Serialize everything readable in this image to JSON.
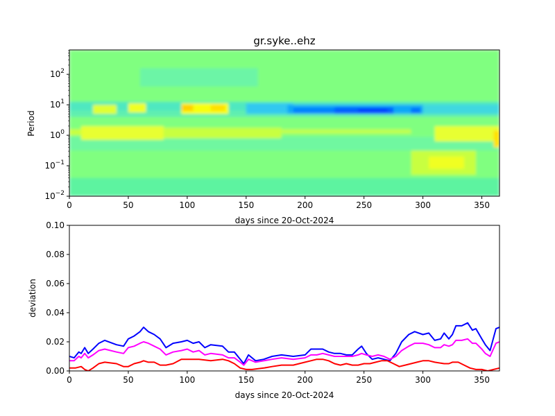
{
  "chart_data": [
    {
      "type": "heatmap",
      "title": "gr.syke..ehz",
      "xlabel": "days since 20-Oct-2024",
      "ylabel": "Period",
      "xlim": [
        0,
        365
      ],
      "ylim_log10": [
        -2,
        2.8
      ],
      "x_ticks": [
        0,
        50,
        100,
        150,
        200,
        250,
        300,
        350
      ],
      "y_ticks": [
        {
          "base": "10",
          "exp": "−2",
          "log10": -2
        },
        {
          "base": "10",
          "exp": "−1",
          "log10": -1
        },
        {
          "base": "10",
          "exp": "0",
          "log10": 0
        },
        {
          "base": "10",
          "exp": "1",
          "log10": 1
        },
        {
          "base": "10",
          "exp": "2",
          "log10": 2
        }
      ],
      "colormap": "jet",
      "colors": {
        "background": "#80ff80"
      },
      "bands": [
        {
          "x0": 0,
          "x1": 365,
          "y0": -2,
          "y1": 2.8,
          "color": "#80ff80"
        },
        {
          "x0": 0,
          "x1": 365,
          "y0": -2,
          "y1": -1.4,
          "color": "#5df3a0"
        },
        {
          "x0": 60,
          "x1": 160,
          "y0": 1.6,
          "y1": 2.2,
          "color": "#6cf5a6"
        },
        {
          "x0": 0,
          "x1": 365,
          "y0": -0.5,
          "y1": -0.05,
          "color": "#70f7a0"
        },
        {
          "x0": 0,
          "x1": 365,
          "y0": 0.8,
          "y1": 1.1,
          "color": "#50e8c0"
        },
        {
          "x0": 0,
          "x1": 365,
          "y0": 0.6,
          "y1": 0.8,
          "color": "#60efb0"
        },
        {
          "x0": 10,
          "x1": 80,
          "y0": -0.15,
          "y1": 0.3,
          "color": "#e8ff30"
        },
        {
          "x0": 80,
          "x1": 180,
          "y0": -0.1,
          "y1": 0.25,
          "color": "#c8ff40"
        },
        {
          "x0": 0,
          "x1": 10,
          "y0": 0.0,
          "y1": 0.2,
          "color": "#c8ff40"
        },
        {
          "x0": 180,
          "x1": 290,
          "y0": 0.05,
          "y1": 0.2,
          "color": "#c0ff50"
        },
        {
          "x0": 310,
          "x1": 365,
          "y0": -0.2,
          "y1": 0.3,
          "color": "#e8ff30"
        },
        {
          "x0": 290,
          "x1": 345,
          "y0": -1.3,
          "y1": -0.5,
          "color": "#c8ff40"
        },
        {
          "x0": 305,
          "x1": 335,
          "y0": -1.1,
          "y1": -0.7,
          "color": "#f0ff20"
        },
        {
          "x0": 20,
          "x1": 40,
          "y0": 0.7,
          "y1": 1.0,
          "color": "#e0ff30"
        },
        {
          "x0": 50,
          "x1": 65,
          "y0": 0.75,
          "y1": 1.05,
          "color": "#f0ff20"
        },
        {
          "x0": 95,
          "x1": 135,
          "y0": 0.7,
          "y1": 1.05,
          "color": "#f8ff10"
        },
        {
          "x0": 95,
          "x1": 105,
          "y0": 0.8,
          "y1": 1.0,
          "color": "#ffd000"
        },
        {
          "x0": 120,
          "x1": 132,
          "y0": 0.8,
          "y1": 1.0,
          "color": "#ffe000"
        },
        {
          "x0": 150,
          "x1": 190,
          "y0": 0.7,
          "y1": 1.05,
          "color": "#30c8f0"
        },
        {
          "x0": 185,
          "x1": 300,
          "y0": 0.7,
          "y1": 1.0,
          "color": "#10a8f8"
        },
        {
          "x0": 190,
          "x1": 225,
          "y0": 0.72,
          "y1": 0.9,
          "color": "#0080ff"
        },
        {
          "x0": 225,
          "x1": 275,
          "y0": 0.7,
          "y1": 0.92,
          "color": "#0060ff"
        },
        {
          "x0": 245,
          "x1": 270,
          "y0": 0.75,
          "y1": 0.88,
          "color": "#0040ff"
        },
        {
          "x0": 290,
          "x1": 298,
          "y0": 0.72,
          "y1": 0.9,
          "color": "#0070ff"
        },
        {
          "x0": 300,
          "x1": 365,
          "y0": 0.7,
          "y1": 1.0,
          "color": "#40d8e0"
        },
        {
          "x0": 360,
          "x1": 365,
          "y0": -0.4,
          "y1": 0.15,
          "color": "#ffe000"
        }
      ]
    },
    {
      "type": "line",
      "title": "",
      "xlabel": "days since 20-Oct-2024",
      "ylabel": "deviation",
      "xlim": [
        0,
        365
      ],
      "ylim": [
        0,
        0.1
      ],
      "x_ticks": [
        0,
        50,
        100,
        150,
        200,
        250,
        300,
        350
      ],
      "y_ticks": [
        0.0,
        0.02,
        0.04,
        0.06,
        0.08,
        0.1
      ],
      "y_tick_labels": [
        "0.00",
        "0.02",
        "0.04",
        "0.06",
        "0.08",
        "0.10"
      ],
      "grid": false,
      "series": [
        {
          "name": "blue",
          "color": "#0000ff",
          "x": [
            0,
            4,
            8,
            10,
            13,
            16,
            20,
            25,
            30,
            40,
            46,
            50,
            55,
            60,
            63,
            67,
            72,
            77,
            82,
            88,
            95,
            100,
            105,
            110,
            115,
            120,
            130,
            135,
            140,
            145,
            148,
            152,
            158,
            165,
            172,
            180,
            190,
            200,
            205,
            210,
            215,
            220,
            225,
            230,
            235,
            240,
            245,
            248,
            252,
            257,
            262,
            267,
            272,
            277,
            282,
            288,
            293,
            300,
            305,
            310,
            315,
            318,
            322,
            325,
            328,
            333,
            338,
            342,
            345,
            350,
            353,
            357,
            362,
            365
          ],
          "y": [
            0.01,
            0.009,
            0.013,
            0.012,
            0.016,
            0.012,
            0.015,
            0.019,
            0.021,
            0.018,
            0.017,
            0.022,
            0.024,
            0.027,
            0.03,
            0.027,
            0.025,
            0.022,
            0.016,
            0.019,
            0.02,
            0.021,
            0.019,
            0.02,
            0.016,
            0.018,
            0.017,
            0.013,
            0.013,
            0.008,
            0.005,
            0.011,
            0.007,
            0.008,
            0.01,
            0.011,
            0.01,
            0.011,
            0.015,
            0.015,
            0.015,
            0.013,
            0.012,
            0.012,
            0.011,
            0.011,
            0.015,
            0.017,
            0.012,
            0.008,
            0.009,
            0.008,
            0.007,
            0.012,
            0.02,
            0.025,
            0.027,
            0.025,
            0.026,
            0.021,
            0.022,
            0.026,
            0.022,
            0.025,
            0.031,
            0.031,
            0.033,
            0.028,
            0.029,
            0.022,
            0.018,
            0.014,
            0.029,
            0.03
          ]
        },
        {
          "name": "magenta",
          "color": "#ff00ff",
          "x": [
            0,
            4,
            8,
            10,
            13,
            16,
            20,
            25,
            30,
            40,
            46,
            50,
            55,
            60,
            63,
            67,
            72,
            77,
            82,
            88,
            95,
            100,
            105,
            110,
            115,
            120,
            130,
            135,
            140,
            145,
            148,
            152,
            158,
            165,
            172,
            180,
            190,
            200,
            205,
            210,
            215,
            220,
            225,
            230,
            235,
            240,
            245,
            248,
            252,
            257,
            262,
            267,
            272,
            277,
            282,
            288,
            293,
            300,
            305,
            310,
            315,
            318,
            322,
            325,
            328,
            333,
            338,
            342,
            345,
            350,
            353,
            357,
            362,
            365
          ],
          "y": [
            0.007,
            0.007,
            0.01,
            0.009,
            0.012,
            0.009,
            0.011,
            0.014,
            0.015,
            0.013,
            0.012,
            0.016,
            0.017,
            0.019,
            0.02,
            0.019,
            0.017,
            0.015,
            0.011,
            0.013,
            0.014,
            0.015,
            0.013,
            0.014,
            0.011,
            0.012,
            0.011,
            0.009,
            0.009,
            0.006,
            0.004,
            0.008,
            0.006,
            0.007,
            0.008,
            0.009,
            0.008,
            0.009,
            0.011,
            0.011,
            0.012,
            0.011,
            0.01,
            0.01,
            0.01,
            0.01,
            0.011,
            0.012,
            0.011,
            0.01,
            0.011,
            0.01,
            0.008,
            0.01,
            0.014,
            0.017,
            0.019,
            0.019,
            0.018,
            0.016,
            0.016,
            0.018,
            0.017,
            0.018,
            0.021,
            0.021,
            0.022,
            0.019,
            0.019,
            0.015,
            0.012,
            0.01,
            0.019,
            0.02
          ]
        },
        {
          "name": "red",
          "color": "#ff0000",
          "x": [
            0,
            5,
            10,
            13,
            16,
            20,
            25,
            30,
            40,
            46,
            50,
            55,
            60,
            63,
            67,
            72,
            77,
            82,
            88,
            95,
            100,
            110,
            120,
            130,
            135,
            140,
            145,
            150,
            155,
            165,
            172,
            180,
            190,
            200,
            205,
            210,
            215,
            220,
            225,
            230,
            235,
            240,
            245,
            250,
            255,
            260,
            265,
            270,
            275,
            280,
            285,
            290,
            295,
            300,
            305,
            310,
            318,
            322,
            325,
            330,
            335,
            340,
            345,
            350,
            355,
            360,
            365
          ],
          "y": [
            0.002,
            0.002,
            0.003,
            0.001,
            0.0,
            0.002,
            0.005,
            0.006,
            0.005,
            0.003,
            0.003,
            0.005,
            0.006,
            0.007,
            0.006,
            0.006,
            0.004,
            0.004,
            0.005,
            0.008,
            0.008,
            0.008,
            0.007,
            0.008,
            0.007,
            0.005,
            0.002,
            0.001,
            0.001,
            0.002,
            0.003,
            0.004,
            0.004,
            0.006,
            0.007,
            0.008,
            0.008,
            0.007,
            0.005,
            0.004,
            0.005,
            0.004,
            0.004,
            0.005,
            0.005,
            0.006,
            0.007,
            0.007,
            0.005,
            0.003,
            0.004,
            0.005,
            0.006,
            0.007,
            0.007,
            0.006,
            0.005,
            0.005,
            0.006,
            0.006,
            0.004,
            0.002,
            0.001,
            0.001,
            0.0,
            0.001,
            0.002
          ]
        }
      ]
    }
  ]
}
